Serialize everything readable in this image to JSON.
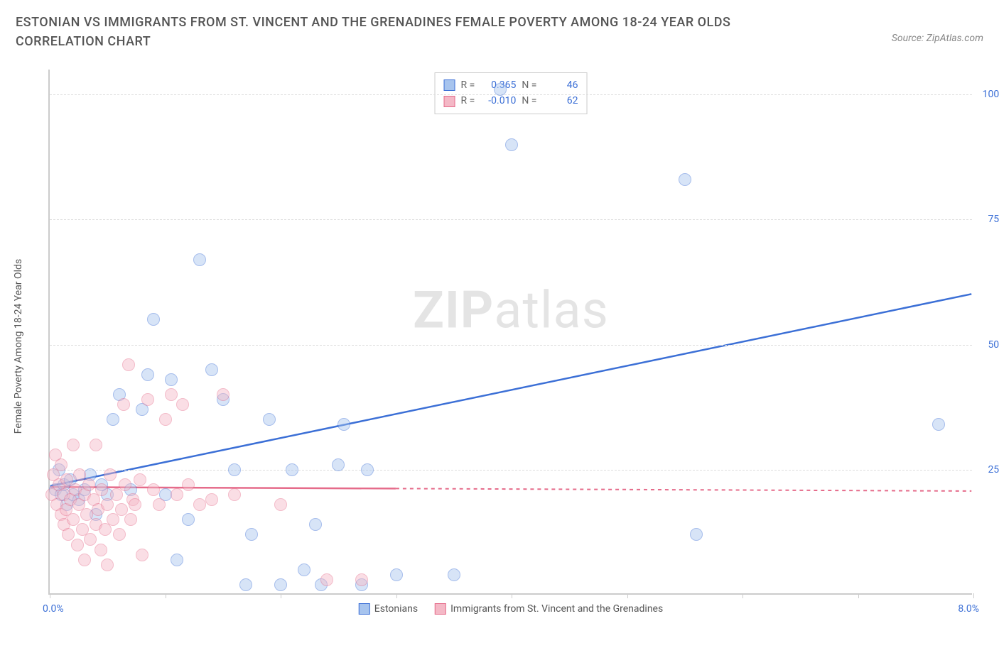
{
  "title": "ESTONIAN VS IMMIGRANTS FROM ST. VINCENT AND THE GRENADINES FEMALE POVERTY AMONG 18-24 YEAR OLDS CORRELATION CHART",
  "source": "Source: ZipAtlas.com",
  "watermark_bold": "ZIP",
  "watermark_rest": "atlas",
  "y_axis_title": "Female Poverty Among 18-24 Year Olds",
  "chart": {
    "type": "scatter",
    "xlim": [
      0,
      8
    ],
    "ylim": [
      0,
      105
    ],
    "x_min_label": "0.0%",
    "x_max_label": "8.0%",
    "x_ticks": [
      0,
      1,
      2,
      3,
      4,
      5,
      6,
      7,
      8
    ],
    "y_gridlines": [
      25,
      50,
      75,
      100
    ],
    "y_tick_labels": [
      "25.0%",
      "50.0%",
      "75.0%",
      "100.0%"
    ],
    "background_color": "#ffffff",
    "grid_color": "#dddddd",
    "axis_color": "#cccccc",
    "tick_label_color": "#3b6fd6",
    "point_radius": 9,
    "point_opacity": 0.45,
    "series": [
      {
        "name": "Estonians",
        "color_fill": "#a7c4ee",
        "color_stroke": "#3b6fd6",
        "R": "0.365",
        "N": "46",
        "trend": {
          "x1": 0,
          "y1": 21.5,
          "x2": 8,
          "y2": 60,
          "color": "#3b6fd6",
          "width": 2.5,
          "solid_until_x": 8
        },
        "points": [
          [
            0.05,
            21
          ],
          [
            0.08,
            25
          ],
          [
            0.1,
            20
          ],
          [
            0.12,
            22
          ],
          [
            0.15,
            18
          ],
          [
            0.18,
            23
          ],
          [
            0.2,
            20
          ],
          [
            0.25,
            19
          ],
          [
            0.3,
            21
          ],
          [
            0.35,
            24
          ],
          [
            0.5,
            20
          ],
          [
            0.55,
            35
          ],
          [
            0.6,
            40
          ],
          [
            0.7,
            21
          ],
          [
            0.8,
            37
          ],
          [
            0.85,
            44
          ],
          [
            0.9,
            55
          ],
          [
            1.0,
            20
          ],
          [
            1.05,
            43
          ],
          [
            1.1,
            7
          ],
          [
            1.2,
            15
          ],
          [
            1.3,
            67
          ],
          [
            1.4,
            45
          ],
          [
            1.5,
            39
          ],
          [
            1.6,
            25
          ],
          [
            1.7,
            2
          ],
          [
            1.75,
            12
          ],
          [
            1.9,
            35
          ],
          [
            2.0,
            2
          ],
          [
            2.1,
            25
          ],
          [
            2.2,
            5
          ],
          [
            2.3,
            14
          ],
          [
            2.35,
            2
          ],
          [
            2.5,
            26
          ],
          [
            2.55,
            34
          ],
          [
            2.7,
            2
          ],
          [
            2.75,
            25
          ],
          [
            3.0,
            4
          ],
          [
            3.5,
            4
          ],
          [
            3.9,
            101
          ],
          [
            4.0,
            90
          ],
          [
            5.5,
            83
          ],
          [
            5.6,
            12
          ],
          [
            7.7,
            34
          ],
          [
            0.4,
            16
          ],
          [
            0.45,
            22
          ]
        ]
      },
      {
        "name": "Immigrants from St. Vincent and the Grenadines",
        "color_fill": "#f4b8c6",
        "color_stroke": "#e56b8a",
        "R": "-0.010",
        "N": "62",
        "trend": {
          "x1": 0,
          "y1": 21.3,
          "x2": 8,
          "y2": 20.5,
          "color": "#e56b8a",
          "width": 2.5,
          "solid_until_x": 3.0
        },
        "points": [
          [
            0.02,
            20
          ],
          [
            0.03,
            24
          ],
          [
            0.05,
            28
          ],
          [
            0.06,
            18
          ],
          [
            0.08,
            22
          ],
          [
            0.1,
            16
          ],
          [
            0.1,
            26
          ],
          [
            0.12,
            14
          ],
          [
            0.12,
            20
          ],
          [
            0.14,
            17
          ],
          [
            0.15,
            23
          ],
          [
            0.16,
            12
          ],
          [
            0.18,
            19
          ],
          [
            0.2,
            15
          ],
          [
            0.2,
            30
          ],
          [
            0.22,
            21
          ],
          [
            0.24,
            10
          ],
          [
            0.25,
            18
          ],
          [
            0.26,
            24
          ],
          [
            0.28,
            13
          ],
          [
            0.3,
            20
          ],
          [
            0.3,
            7
          ],
          [
            0.32,
            16
          ],
          [
            0.34,
            22
          ],
          [
            0.35,
            11
          ],
          [
            0.38,
            19
          ],
          [
            0.4,
            14
          ],
          [
            0.4,
            30
          ],
          [
            0.42,
            17
          ],
          [
            0.44,
            9
          ],
          [
            0.45,
            21
          ],
          [
            0.48,
            13
          ],
          [
            0.5,
            18
          ],
          [
            0.5,
            6
          ],
          [
            0.52,
            24
          ],
          [
            0.55,
            15
          ],
          [
            0.58,
            20
          ],
          [
            0.6,
            12
          ],
          [
            0.62,
            17
          ],
          [
            0.64,
            38
          ],
          [
            0.65,
            22
          ],
          [
            0.68,
            46
          ],
          [
            0.7,
            15
          ],
          [
            0.72,
            19
          ],
          [
            0.74,
            18
          ],
          [
            0.78,
            23
          ],
          [
            0.8,
            8
          ],
          [
            0.85,
            39
          ],
          [
            0.9,
            21
          ],
          [
            0.95,
            18
          ],
          [
            1.0,
            35
          ],
          [
            1.05,
            40
          ],
          [
            1.1,
            20
          ],
          [
            1.15,
            38
          ],
          [
            1.2,
            22
          ],
          [
            1.3,
            18
          ],
          [
            1.4,
            19
          ],
          [
            1.5,
            40
          ],
          [
            1.6,
            20
          ],
          [
            2.0,
            18
          ],
          [
            2.4,
            3
          ],
          [
            2.7,
            3
          ]
        ]
      }
    ]
  },
  "legend_labels": {
    "R": "R =",
    "N": "N ="
  }
}
